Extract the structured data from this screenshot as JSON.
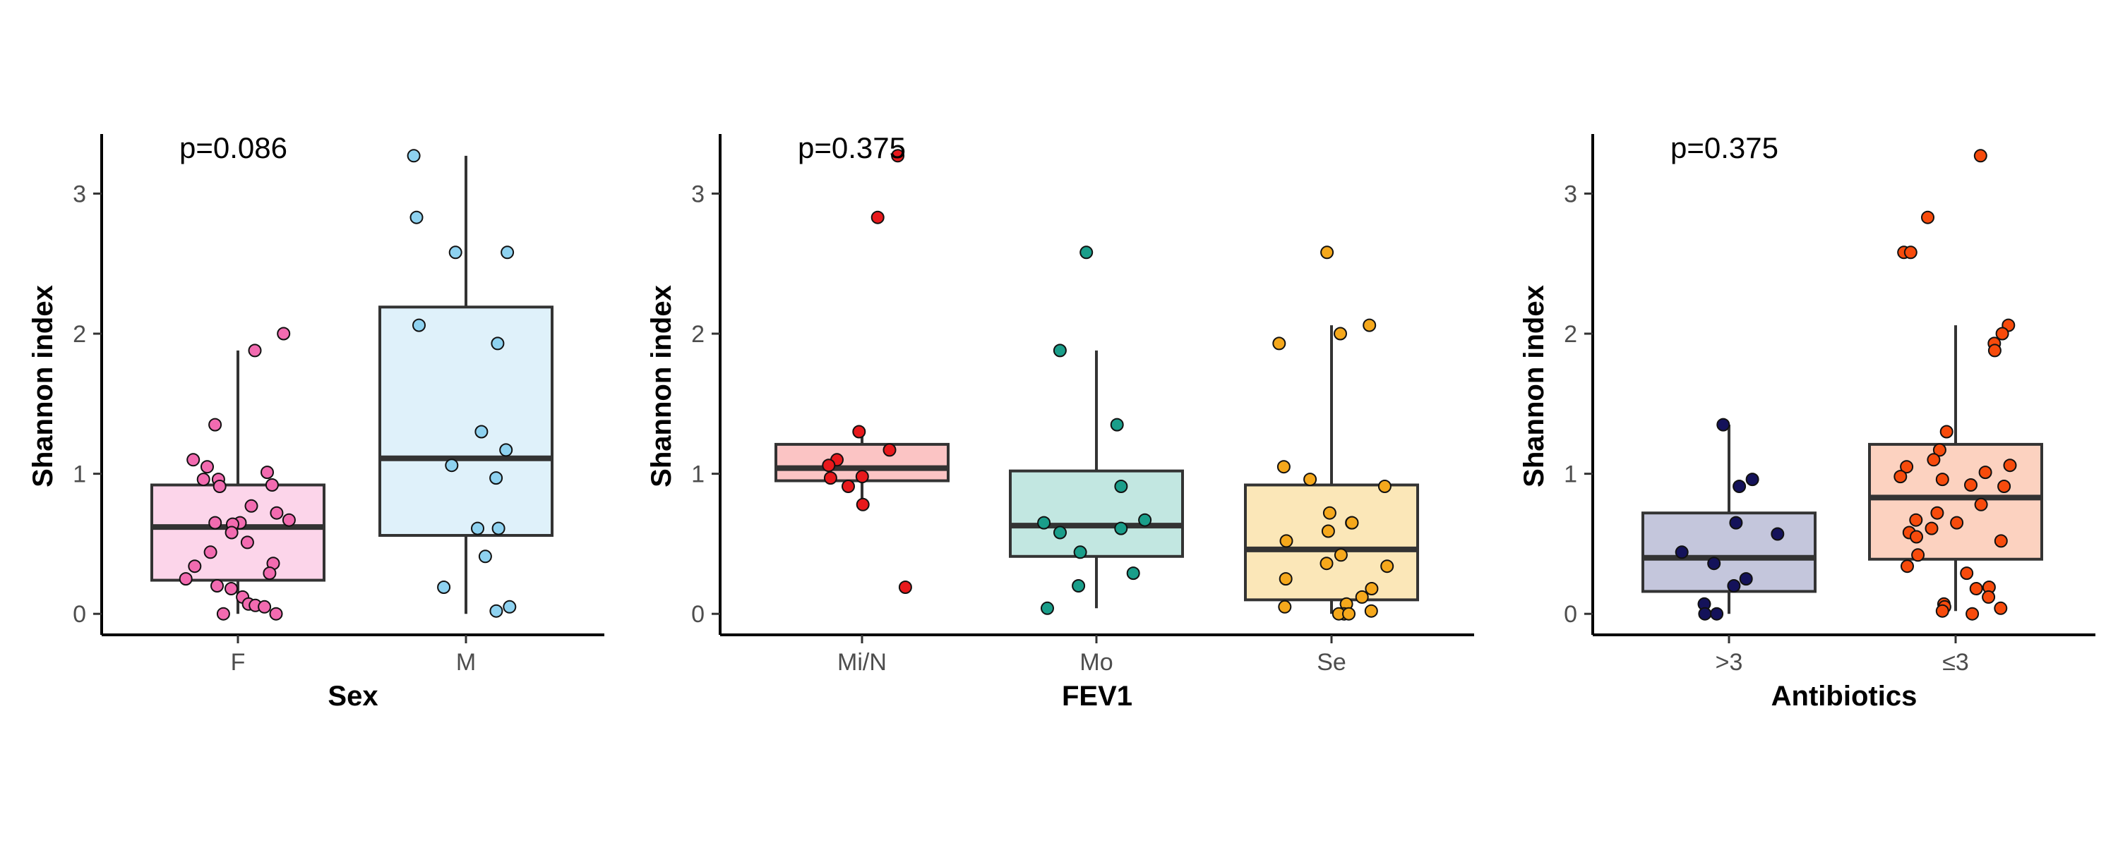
{
  "chart_data": [
    {
      "type": "box",
      "title": "",
      "xlabel": "Sex",
      "ylabel": "Shannon index",
      "annotation": "p=0.086",
      "ylim": [
        -0.15,
        3.4
      ],
      "yticks": [
        0,
        1,
        2,
        3
      ],
      "grid": false,
      "legend": "none",
      "categories": [
        "F",
        "M"
      ],
      "colors": [
        {
          "fill": "#fcd5ea",
          "point": "#f26bb0"
        },
        {
          "fill": "#dff1fa",
          "point": "#8ed2f0"
        }
      ],
      "boxes": [
        {
          "q1": 0.24,
          "median": 0.62,
          "q3": 0.92,
          "whisker_low": 0.0,
          "whisker_high": 1.88
        },
        {
          "q1": 0.56,
          "median": 1.11,
          "q3": 2.19,
          "whisker_low": 0.0,
          "whisker_high": 3.27
        }
      ],
      "points": [
        [
          1.88,
          2.0,
          1.35,
          1.1,
          1.05,
          1.01,
          0.96,
          0.96,
          0.92,
          0.91,
          0.77,
          0.72,
          0.67,
          0.65,
          0.65,
          0.64,
          0.58,
          0.51,
          0.44,
          0.36,
          0.34,
          0.29,
          0.25,
          0.2,
          0.18,
          0.12,
          0.07,
          0.06,
          0.05,
          0.0,
          0.0
        ],
        [
          3.27,
          2.83,
          2.58,
          2.58,
          2.06,
          1.93,
          1.3,
          1.17,
          1.06,
          0.97,
          0.61,
          0.61,
          0.41,
          0.19,
          0.05,
          0.02
        ]
      ]
    },
    {
      "type": "box",
      "title": "",
      "xlabel": "FEV1",
      "ylabel": "Shannon index",
      "annotation": "p=0.375",
      "ylim": [
        -0.15,
        3.4
      ],
      "yticks": [
        0,
        1,
        2,
        3
      ],
      "grid": false,
      "legend": "none",
      "categories": [
        "Mi/N",
        "Mo",
        "Se"
      ],
      "colors": [
        {
          "fill": "#fbc4c4",
          "point": "#e8191c"
        },
        {
          "fill": "#c2e7e1",
          "point": "#1a9e8a"
        },
        {
          "fill": "#fbe7b8",
          "point": "#f5a81c"
        }
      ],
      "boxes": [
        {
          "q1": 0.95,
          "median": 1.04,
          "q3": 1.21,
          "whisker_low": 0.78,
          "whisker_high": 1.3
        },
        {
          "q1": 0.41,
          "median": 0.63,
          "q3": 1.02,
          "whisker_low": 0.04,
          "whisker_high": 1.88
        },
        {
          "q1": 0.1,
          "median": 0.46,
          "q3": 0.92,
          "whisker_low": 0.0,
          "whisker_high": 2.06
        }
      ],
      "points": [
        [
          3.27,
          2.83,
          1.3,
          1.17,
          1.1,
          1.06,
          0.98,
          0.97,
          0.91,
          0.78,
          0.19
        ],
        [
          2.58,
          1.88,
          1.35,
          0.91,
          0.67,
          0.65,
          0.61,
          0.58,
          0.44,
          0.29,
          0.2,
          0.04
        ],
        [
          2.58,
          2.06,
          2.0,
          1.93,
          1.05,
          0.96,
          0.91,
          0.72,
          0.65,
          0.65,
          0.59,
          0.52,
          0.42,
          0.36,
          0.34,
          0.25,
          0.18,
          0.12,
          0.07,
          0.05,
          0.02,
          0.0,
          0.0,
          0.0
        ]
      ]
    },
    {
      "type": "box",
      "title": "",
      "xlabel": "Antibiotics",
      "ylabel": "Shannon index",
      "annotation": "p=0.375",
      "ylim": [
        -0.15,
        3.4
      ],
      "yticks": [
        0,
        1,
        2,
        3
      ],
      "grid": false,
      "legend": "none",
      "categories": [
        ">3",
        "≤3"
      ],
      "colors": [
        {
          "fill": "#c4c6dc",
          "point": "#14125a"
        },
        {
          "fill": "#fcd2c0",
          "point": "#f74b0c"
        }
      ],
      "boxes": [
        {
          "q1": 0.16,
          "median": 0.4,
          "q3": 0.72,
          "whisker_low": 0.0,
          "whisker_high": 1.35
        },
        {
          "q1": 0.39,
          "median": 0.83,
          "q3": 1.21,
          "whisker_low": 0.02,
          "whisker_high": 2.06
        }
      ],
      "points": [
        [
          1.35,
          0.96,
          0.91,
          0.65,
          0.57,
          0.44,
          0.36,
          0.25,
          0.2,
          0.07,
          0.0,
          0.0
        ],
        [
          3.27,
          2.83,
          2.58,
          2.58,
          2.06,
          2.0,
          1.93,
          1.88,
          1.3,
          1.17,
          1.1,
          1.06,
          1.05,
          1.01,
          0.98,
          0.96,
          0.92,
          0.91,
          0.78,
          0.72,
          0.67,
          0.65,
          0.61,
          0.58,
          0.55,
          0.52,
          0.42,
          0.34,
          0.29,
          0.19,
          0.18,
          0.12,
          0.07,
          0.05,
          0.04,
          0.02,
          0.0
        ]
      ]
    }
  ]
}
